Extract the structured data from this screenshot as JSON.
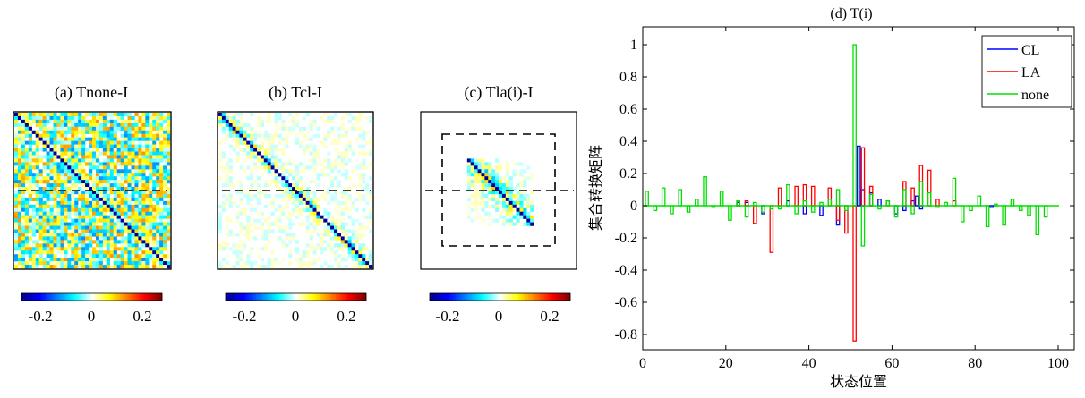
{
  "panels": [
    {
      "title": "(a) Tnone-I",
      "colorbar_ticks": [
        "-0.2",
        "0",
        "0.2"
      ]
    },
    {
      "title": "(b) Tcl-I",
      "colorbar_ticks": [
        "-0.2",
        "0",
        "0.2"
      ]
    },
    {
      "title": "(c) Tla(i)-I",
      "colorbar_ticks": [
        "-0.2",
        "0",
        "0.2"
      ]
    }
  ],
  "colormap": [
    "#00008f",
    "#0000ff",
    "#0080ff",
    "#00ffff",
    "#ffffff",
    "#ffff00",
    "#ff8000",
    "#ff0000",
    "#800000"
  ],
  "chart_data": [
    {
      "type": "heatmap",
      "title": "(a) Tnone-I",
      "description_values": "noisy matrix, strong negative diagonal",
      "clim": [
        -0.3,
        0.3
      ],
      "dashed_line": "horizontal at center"
    },
    {
      "type": "heatmap",
      "title": "(b) Tcl-I",
      "clim": [
        -0.3,
        0.3
      ],
      "dashed_line": "horizontal at center"
    },
    {
      "type": "heatmap",
      "title": "(c) Tla(i)-I",
      "clim": [
        -0.3,
        0.3
      ],
      "dashed_line": "horizontal at center plus dashed inner box"
    },
    {
      "type": "bar",
      "title": "(d) T(i)",
      "xlabel": "状态位置",
      "ylabel": "集合转换矩阵",
      "xlim": [
        0,
        100
      ],
      "ylim": [
        -0.9,
        1.1
      ],
      "xticks": [
        "0",
        "20",
        "40",
        "60",
        "80",
        "100"
      ],
      "yticks": [
        "1",
        "0.8",
        "0.6",
        "0.4",
        "0.2",
        "0",
        "-0.2",
        "-0.4",
        "-0.6",
        "-0.8"
      ],
      "legend_position": "top-right",
      "series": [
        {
          "name": "CL",
          "color": "#0000ff",
          "x": [
            23,
            25,
            29,
            35,
            39,
            43,
            47,
            52,
            53,
            55,
            57,
            61,
            63,
            65,
            66,
            67,
            84
          ],
          "values": [
            0.02,
            0.02,
            -0.05,
            0.03,
            -0.05,
            -0.06,
            -0.12,
            0.37,
            0.1,
            0.08,
            0.04,
            -0.05,
            -0.03,
            0.03,
            0.06,
            -0.02,
            -0.01
          ]
        },
        {
          "name": "LA",
          "color": "#ff0000",
          "x": [
            23,
            25,
            27,
            31,
            33,
            37,
            39,
            41,
            45,
            47,
            49,
            51,
            53,
            55,
            59,
            63,
            65,
            67,
            69,
            71,
            75
          ],
          "values": [
            0.03,
            0.03,
            -0.11,
            -0.29,
            0.11,
            0.12,
            0.13,
            0.12,
            0.11,
            -0.09,
            -0.17,
            -0.84,
            0.36,
            0.12,
            0.03,
            0.15,
            0.11,
            0.25,
            0.22,
            0.04,
            0.03
          ]
        },
        {
          "name": "none",
          "color": "#00e000",
          "x": [
            1,
            3,
            5,
            7,
            9,
            11,
            13,
            15,
            17,
            19,
            21,
            23,
            25,
            27,
            29,
            31,
            33,
            35,
            37,
            39,
            41,
            43,
            45,
            47,
            49,
            51,
            53,
            55,
            57,
            59,
            61,
            63,
            65,
            67,
            69,
            71,
            73,
            75,
            77,
            79,
            81,
            83,
            85,
            87,
            89,
            91,
            93,
            95,
            97
          ],
          "values": [
            0.09,
            -0.03,
            0.11,
            -0.05,
            0.1,
            -0.04,
            0.04,
            0.18,
            -0.01,
            0.09,
            -0.09,
            0.03,
            -0.07,
            0.02,
            -0.04,
            -0.02,
            -0.02,
            0.13,
            -0.05,
            0.03,
            -0.04,
            0.02,
            0.04,
            0.1,
            -0.03,
            1.0,
            -0.25,
            0.07,
            -0.02,
            0.03,
            -0.07,
            0.1,
            -0.05,
            0.15,
            0.08,
            -0.01,
            0.02,
            0.17,
            -0.1,
            -0.03,
            0.06,
            -0.13,
            0.01,
            -0.12,
            0.04,
            -0.03,
            -0.06,
            -0.18,
            -0.07
          ]
        }
      ]
    }
  ]
}
